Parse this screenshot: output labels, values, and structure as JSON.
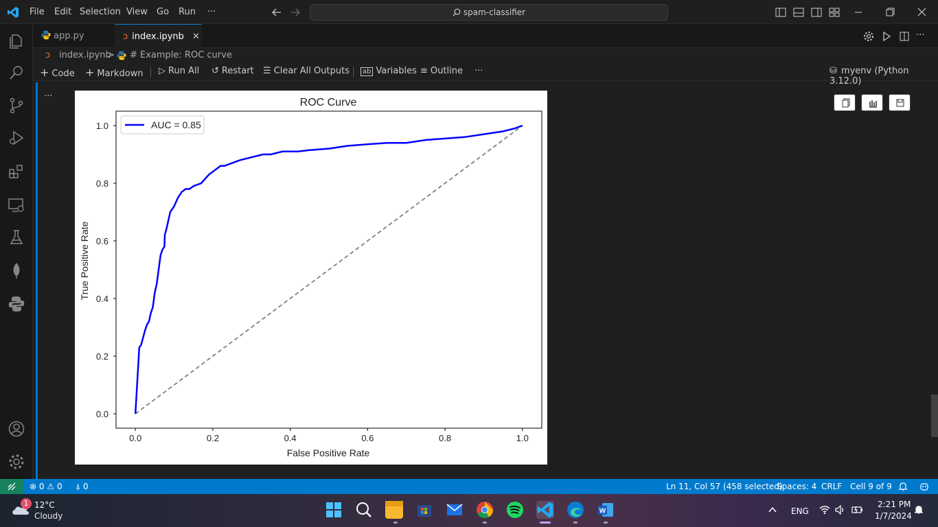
{
  "titlebar": {
    "menu": [
      "File",
      "Edit",
      "Selection",
      "View",
      "Go",
      "Run",
      "···"
    ],
    "search": "spam-classifier"
  },
  "tabs": [
    {
      "label": "app.py"
    },
    {
      "label": "index.ipynb",
      "close": "✕"
    }
  ],
  "breadcrumb": {
    "file": "index.ipynb",
    "separator": ">",
    "cell": "# Example: ROC curve"
  },
  "toolbar": {
    "code": "Code",
    "markdown": "Markdown",
    "run_all": "Run All",
    "restart": "Restart",
    "clear": "Clear All Outputs",
    "variables": "Variables",
    "outline": "Outline",
    "more": "···",
    "kernel": "myenv (Python 3.12.0)"
  },
  "cell": {
    "more": "···"
  },
  "chart_data": {
    "type": "line",
    "title": "ROC Curve",
    "xlabel": "False Positive Rate",
    "ylabel": "True Positive Rate",
    "xlim": [
      -0.05,
      1.05
    ],
    "ylim": [
      -0.05,
      1.05
    ],
    "xticks": [
      "0.0",
      "0.2",
      "0.4",
      "0.6",
      "0.8",
      "1.0"
    ],
    "yticks": [
      "0.0",
      "0.2",
      "0.4",
      "0.6",
      "0.8",
      "1.0"
    ],
    "legend": "upper-left",
    "grid": false,
    "series": [
      {
        "name": "AUC = 0.85",
        "color": "#0000ff",
        "style": "solid",
        "x": [
          0.0,
          0.01,
          0.015,
          0.025,
          0.03,
          0.035,
          0.04,
          0.045,
          0.05,
          0.055,
          0.06,
          0.065,
          0.07,
          0.075,
          0.076,
          0.08,
          0.085,
          0.09,
          0.1,
          0.11,
          0.12,
          0.13,
          0.14,
          0.15,
          0.17,
          0.19,
          0.2,
          0.22,
          0.23,
          0.25,
          0.27,
          0.3,
          0.33,
          0.35,
          0.38,
          0.42,
          0.45,
          0.5,
          0.55,
          0.6,
          0.65,
          0.7,
          0.75,
          0.8,
          0.85,
          0.9,
          0.95,
          0.98,
          1.0
        ],
        "y": [
          0.0,
          0.23,
          0.24,
          0.29,
          0.31,
          0.32,
          0.35,
          0.37,
          0.42,
          0.45,
          0.5,
          0.55,
          0.57,
          0.58,
          0.62,
          0.64,
          0.67,
          0.7,
          0.72,
          0.75,
          0.77,
          0.78,
          0.78,
          0.79,
          0.8,
          0.83,
          0.84,
          0.86,
          0.86,
          0.87,
          0.88,
          0.89,
          0.9,
          0.9,
          0.91,
          0.91,
          0.915,
          0.92,
          0.93,
          0.935,
          0.94,
          0.94,
          0.95,
          0.955,
          0.96,
          0.97,
          0.98,
          0.99,
          1.0
        ]
      },
      {
        "name": "",
        "color": "#808080",
        "style": "dashed",
        "x": [
          0.0,
          1.0
        ],
        "y": [
          0.0,
          1.0
        ]
      }
    ]
  },
  "statusbar": {
    "errors": "0",
    "warnings": "0",
    "ports": "0",
    "position": "Ln 11, Col 57 (458 selected)",
    "spaces": "Spaces: 4",
    "eol": "CRLF",
    "cell": "Cell 9 of 9"
  },
  "taskbar": {
    "weather_badge": "1",
    "temp": "12°C",
    "condition": "Cloudy",
    "lang": "ENG",
    "time": "2:21 PM",
    "date": "1/7/2024"
  }
}
